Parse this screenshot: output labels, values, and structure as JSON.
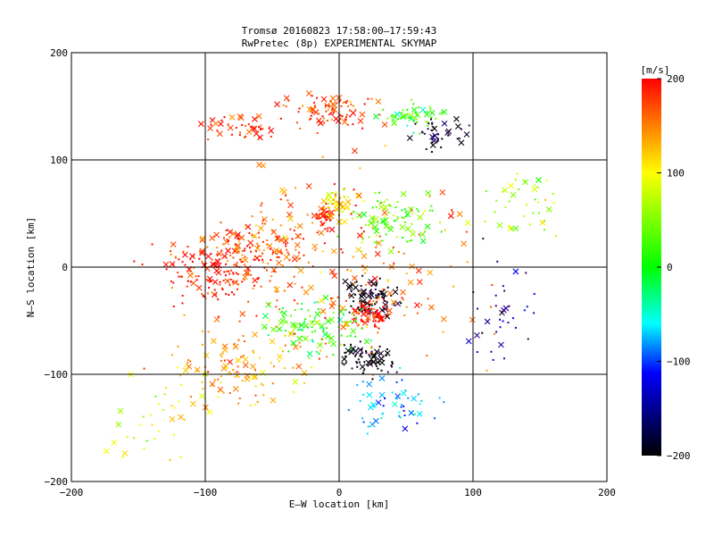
{
  "chart_data": {
    "type": "scatter",
    "title": "Tromsø 20160823 17:58:00–17:59:43",
    "subtitle": "RwPretec (8p) EXPERIMENTAL SKYMAP",
    "xlabel": "E–W location [km]",
    "ylabel": "N–S location [km]",
    "xlim": [
      -200,
      200
    ],
    "ylim": [
      -200,
      200
    ],
    "x_ticks": [
      -200,
      -100,
      0,
      100,
      200
    ],
    "y_ticks": [
      -200,
      -100,
      0,
      100,
      200
    ],
    "grid": true,
    "colorbar": {
      "unit_label": "[m/s]",
      "range": [
        -200,
        200
      ],
      "ticks": [
        200,
        100,
        0,
        -100,
        -200
      ],
      "colors": [
        "#ff0000",
        "#ffff00",
        "#00ff00",
        "#00ffff",
        "#0000ff",
        "#000000"
      ]
    },
    "clusters": [
      {
        "cx": -5,
        "cy": 145,
        "sx": 30,
        "sy": 14,
        "v": 180,
        "n": 90
      },
      {
        "cx": -70,
        "cy": 130,
        "sx": 25,
        "sy": 10,
        "v": 190,
        "n": 45
      },
      {
        "cx": 55,
        "cy": 140,
        "sx": 20,
        "sy": 10,
        "v": 20,
        "n": 55
      },
      {
        "cx": 75,
        "cy": 125,
        "sx": 20,
        "sy": 12,
        "v": -190,
        "n": 40
      },
      {
        "cx": 0,
        "cy": 60,
        "sx": 10,
        "sy": 14,
        "v": 110,
        "n": 60
      },
      {
        "cx": -12,
        "cy": 45,
        "sx": 6,
        "sy": 10,
        "v": 200,
        "n": 40
      },
      {
        "cx": 40,
        "cy": 45,
        "sx": 28,
        "sy": 22,
        "v": 40,
        "n": 100
      },
      {
        "cx": -90,
        "cy": -5,
        "sx": 40,
        "sy": 25,
        "v": 195,
        "n": 160
      },
      {
        "cx": -60,
        "cy": 25,
        "sx": 35,
        "sy": 25,
        "v": 170,
        "n": 90
      },
      {
        "cx": 25,
        "cy": -30,
        "sx": 18,
        "sy": 15,
        "v": -190,
        "n": 90
      },
      {
        "cx": 25,
        "cy": -45,
        "sx": 15,
        "sy": 12,
        "v": 190,
        "n": 60
      },
      {
        "cx": -20,
        "cy": -55,
        "sx": 35,
        "sy": 20,
        "v": 20,
        "n": 110
      },
      {
        "cx": 20,
        "cy": -85,
        "sx": 15,
        "sy": 12,
        "v": -200,
        "n": 70
      },
      {
        "cx": -80,
        "cy": -95,
        "sx": 40,
        "sy": 30,
        "v": 130,
        "n": 110
      },
      {
        "cx": 40,
        "cy": -125,
        "sx": 30,
        "sy": 25,
        "v": -60,
        "n": 55
      },
      {
        "cx": 140,
        "cy": 60,
        "sx": 30,
        "sy": 35,
        "v": 60,
        "n": 45
      },
      {
        "cx": 120,
        "cy": -40,
        "sx": 25,
        "sy": 40,
        "v": -130,
        "n": 35
      },
      {
        "cx": -140,
        "cy": -150,
        "sx": 30,
        "sy": 30,
        "v": 90,
        "n": 30
      },
      {
        "cx": 0,
        "cy": 0,
        "sx": 90,
        "sy": 80,
        "v": 160,
        "n": 220
      }
    ]
  }
}
